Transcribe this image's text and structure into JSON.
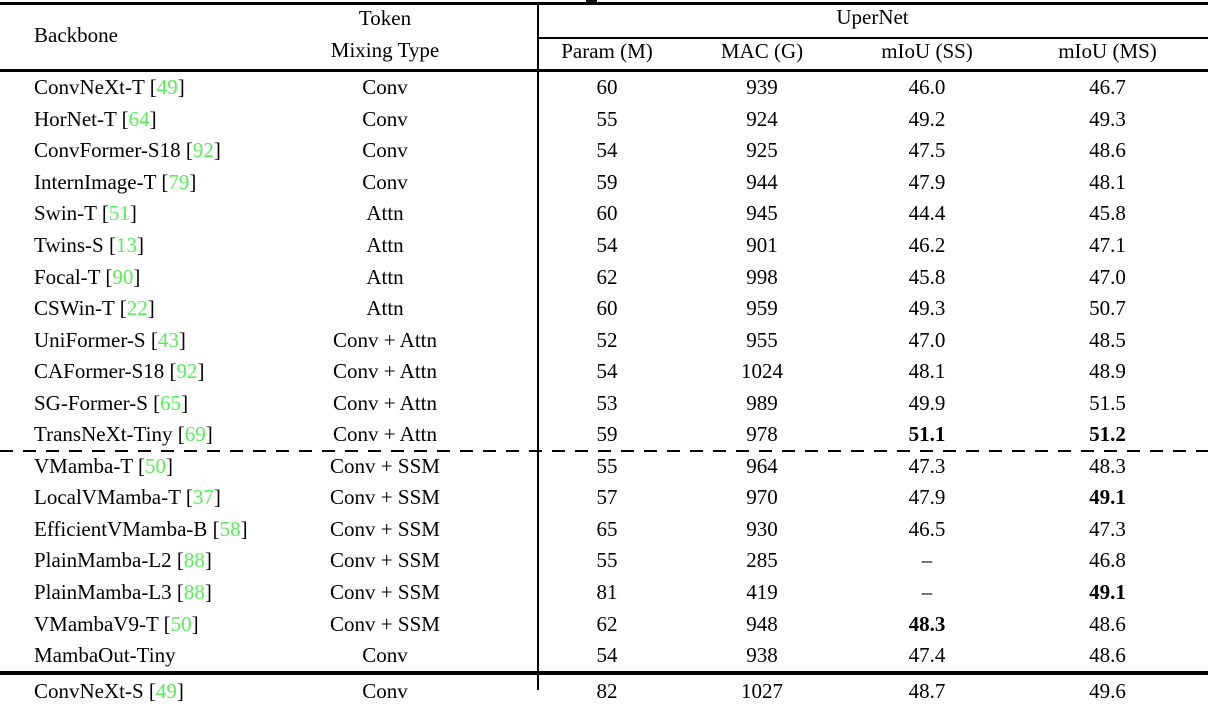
{
  "colors": {
    "citation_green": "#55F055",
    "text_black": "#000000"
  },
  "table": {
    "header": {
      "backbone": "Backbone",
      "token_line1": "Token",
      "token_line2": "Mixing Type",
      "group": "UperNet",
      "subcols": [
        "Param (M)",
        "MAC (G)",
        "mIoU (SS)",
        "mIoU (MS)"
      ]
    },
    "rows": [
      {
        "backbone": "ConvNeXt-T",
        "ref": "49",
        "type": "Conv",
        "param": "60",
        "mac": "939",
        "ss": "46.0",
        "ms": "46.7",
        "bold": []
      },
      {
        "backbone": "HorNet-T",
        "ref": "64",
        "type": "Conv",
        "param": "55",
        "mac": "924",
        "ss": "49.2",
        "ms": "49.3",
        "bold": []
      },
      {
        "backbone": "ConvFormer-S18",
        "ref": "92",
        "type": "Conv",
        "param": "54",
        "mac": "925",
        "ss": "47.5",
        "ms": "48.6",
        "bold": []
      },
      {
        "backbone": "InternImage-T",
        "ref": "79",
        "type": "Conv",
        "param": "59",
        "mac": "944",
        "ss": "47.9",
        "ms": "48.1",
        "bold": []
      },
      {
        "backbone": "Swin-T",
        "ref": "51",
        "type": "Attn",
        "param": "60",
        "mac": "945",
        "ss": "44.4",
        "ms": "45.8",
        "bold": []
      },
      {
        "backbone": "Twins-S",
        "ref": "13",
        "type": "Attn",
        "param": "54",
        "mac": "901",
        "ss": "46.2",
        "ms": "47.1",
        "bold": []
      },
      {
        "backbone": "Focal-T",
        "ref": "90",
        "type": "Attn",
        "param": "62",
        "mac": "998",
        "ss": "45.8",
        "ms": "47.0",
        "bold": []
      },
      {
        "backbone": "CSWin-T",
        "ref": "22",
        "type": "Attn",
        "param": "60",
        "mac": "959",
        "ss": "49.3",
        "ms": "50.7",
        "bold": []
      },
      {
        "backbone": "UniFormer-S",
        "ref": "43",
        "type": "Conv + Attn",
        "param": "52",
        "mac": "955",
        "ss": "47.0",
        "ms": "48.5",
        "bold": []
      },
      {
        "backbone": "CAFormer-S18",
        "ref": "92",
        "type": "Conv + Attn",
        "param": "54",
        "mac": "1024",
        "ss": "48.1",
        "ms": "48.9",
        "bold": []
      },
      {
        "backbone": "SG-Former-S",
        "ref": "65",
        "type": "Conv + Attn",
        "param": "53",
        "mac": "989",
        "ss": "49.9",
        "ms": "51.5",
        "bold": []
      },
      {
        "backbone": "TransNeXt-Tiny",
        "ref": "69",
        "type": "Conv + Attn",
        "param": "59",
        "mac": "978",
        "ss": "51.1",
        "ms": "51.2",
        "bold": [
          "ss",
          "ms"
        ]
      },
      {
        "backbone": "VMamba-T",
        "ref": "50",
        "type": "Conv + SSM",
        "param": "55",
        "mac": "964",
        "ss": "47.3",
        "ms": "48.3",
        "bold": []
      },
      {
        "backbone": "LocalVMamba-T",
        "ref": "37",
        "type": "Conv + SSM",
        "param": "57",
        "mac": "970",
        "ss": "47.9",
        "ms": "49.1",
        "bold": [
          "ms"
        ]
      },
      {
        "backbone": "EfficientVMamba-B",
        "ref": "58",
        "type": "Conv + SSM",
        "param": "65",
        "mac": "930",
        "ss": "46.5",
        "ms": "47.3",
        "bold": []
      },
      {
        "backbone": "PlainMamba-L2",
        "ref": "88",
        "type": "Conv + SSM",
        "param": "55",
        "mac": "285",
        "ss": "–",
        "ms": "46.8",
        "bold": []
      },
      {
        "backbone": "PlainMamba-L3",
        "ref": "88",
        "type": "Conv + SSM",
        "param": "81",
        "mac": "419",
        "ss": "–",
        "ms": "49.1",
        "bold": [
          "ms"
        ]
      },
      {
        "backbone": "VMambaV9-T",
        "ref": "50",
        "type": "Conv + SSM",
        "param": "62",
        "mac": "948",
        "ss": "48.3",
        "ms": "48.6",
        "bold": [
          "ss"
        ]
      },
      {
        "backbone": "MambaOut-Tiny",
        "ref": null,
        "type": "Conv",
        "param": "54",
        "mac": "938",
        "ss": "47.4",
        "ms": "48.6",
        "bold": []
      }
    ],
    "partial_rows": [
      {
        "backbone": "ConvNeXt-S",
        "ref": "49",
        "type": "Conv",
        "param": "82",
        "mac": "1027",
        "ss": "48.7",
        "ms": "49.6",
        "bold": []
      }
    ]
  }
}
